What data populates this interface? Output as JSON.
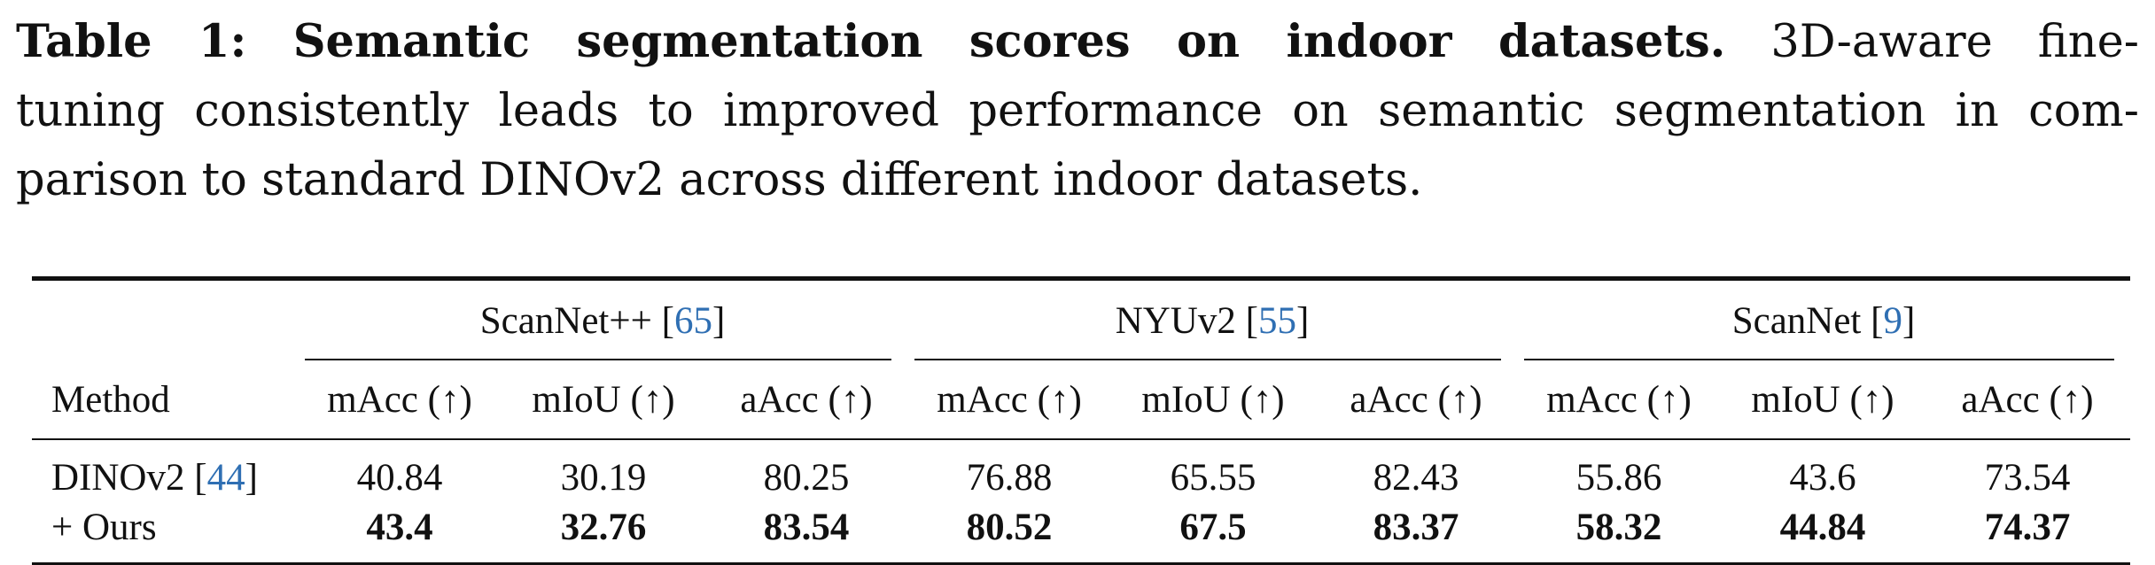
{
  "caption": {
    "lead": "Table 1: Semantic segmentation scores on indoor datasets.",
    "lines": [
      "3D-aware fine-",
      "tuning consistently leads to improved performance on semantic segmentation in com-",
      "parison to standard DINOv2 across different indoor datasets."
    ]
  },
  "table": {
    "method_header": "Method",
    "groups": [
      {
        "name": "ScanNet++",
        "cite": "65"
      },
      {
        "name": "NYUv2",
        "cite": "55"
      },
      {
        "name": "ScanNet",
        "cite": "9"
      }
    ],
    "metrics": [
      "mAcc (↑)",
      "mIoU (↑)",
      "aAcc (↑)",
      "mAcc (↑)",
      "mIoU (↑)",
      "aAcc (↑)",
      "mAcc (↑)",
      "mIoU (↑)",
      "aAcc (↑)"
    ],
    "rows": [
      {
        "method": "DINOv2",
        "cite": "44",
        "bold": false,
        "values": [
          "40.84",
          "30.19",
          "80.25",
          "76.88",
          "65.55",
          "82.43",
          "55.86",
          "43.6",
          "73.54"
        ]
      },
      {
        "method": "+ Ours",
        "cite": "",
        "bold": true,
        "values": [
          "43.4",
          "32.76",
          "83.54",
          "80.52",
          "67.5",
          "83.37",
          "58.32",
          "44.84",
          "74.37"
        ]
      }
    ]
  },
  "colors": {
    "citation": "#2f6fb3"
  }
}
